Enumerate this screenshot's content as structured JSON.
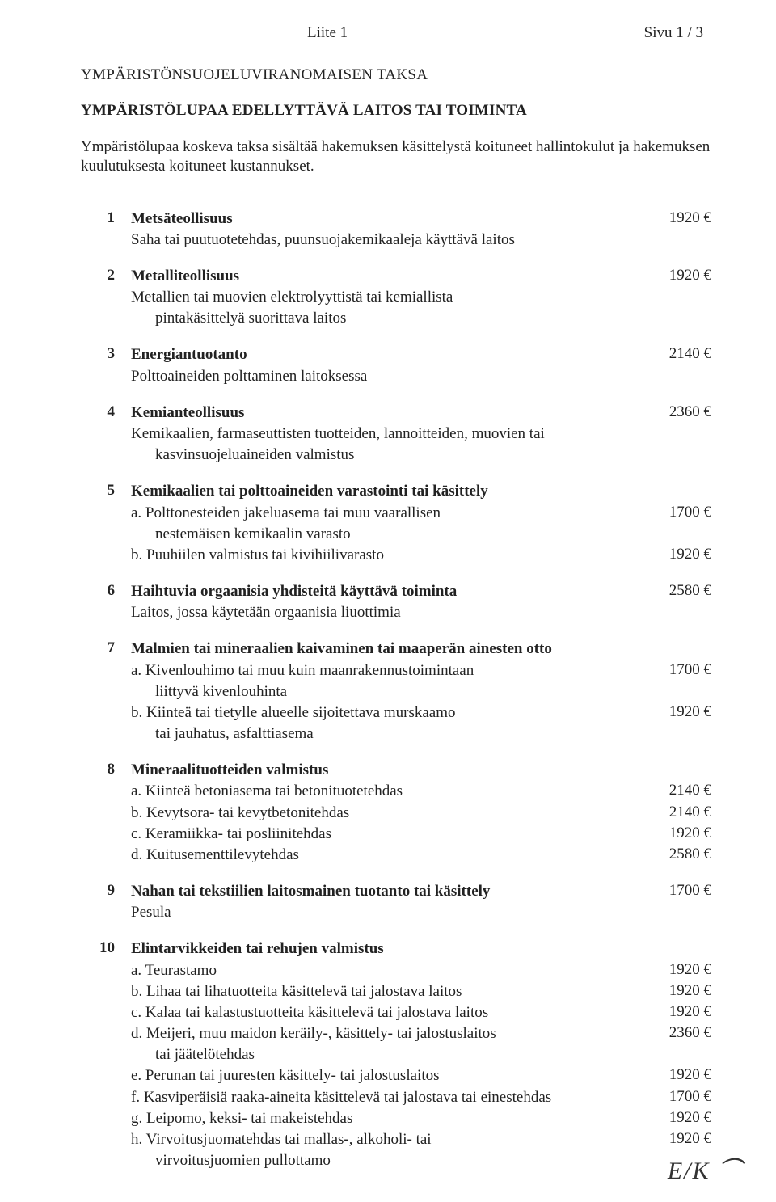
{
  "header": {
    "liite": "Liite 1",
    "page": "Sivu 1 / 3"
  },
  "title": "YMPÄRISTÖNSUOJELUVIRANOMAISEN TAKSA",
  "subtitle": "YMPÄRISTÖLUPAA EDELLYTTÄVÄ LAITOS TAI TOIMINTA",
  "intro": "Ympäristölupaa koskeva taksa sisältää hakemuksen käsittelystä koituneet hallintokulut ja hakemuksen kuulutuksesta koituneet kustannukset.",
  "items": {
    "n1": "1",
    "t1_head": "Metsäteollisuus",
    "t1_desc": "Saha tai puutuotetehdas, puunsuojakemikaaleja käyttävä laitos",
    "p1": "1920 €",
    "n2": "2",
    "t2_head": "Metalliteollisuus",
    "t2_desc": "Metallien tai muovien elektrolyyttistä tai kemiallista",
    "t2_desc2": "pintakäsittelyä suorittava laitos",
    "p2": "1920 €",
    "n3": "3",
    "t3_head": "Energiantuotanto",
    "t3_desc": "Polttoaineiden polttaminen laitoksessa",
    "p3": "2140 €",
    "n4": "4",
    "t4_head": "Kemianteollisuus",
    "t4_desc": "Kemikaalien, farmaseuttisten tuotteiden, lannoitteiden, muovien tai",
    "t4_desc2": "kasvinsuojeluaineiden valmistus",
    "p4": "2360 €",
    "n5": "5",
    "t5_head": "Kemikaalien tai polttoaineiden varastointi tai käsittely",
    "t5a": "a. Polttonesteiden jakeluasema tai muu vaarallisen",
    "t5a2": "nestemäisen kemikaalin varasto",
    "p5a": "1700 €",
    "t5b": "b. Puuhiilen valmistus tai kivihiilivarasto",
    "p5b": "1920 €",
    "n6": "6",
    "t6_head": "Haihtuvia orgaanisia yhdisteitä käyttävä toiminta",
    "t6_desc": "Laitos, jossa käytetään orgaanisia liuottimia",
    "p6": "2580 €",
    "n7": "7",
    "t7_head": "Malmien tai mineraalien kaivaminen tai maaperän ainesten otto",
    "t7a": "a. Kivenlouhimo tai muu kuin maanrakennustoimintaan",
    "t7a2": "liittyvä kivenlouhinta",
    "p7a": "1700 €",
    "t7b": "b. Kiinteä tai tietylle alueelle sijoitettava murskaamo",
    "t7b2": "tai jauhatus, asfalttiasema",
    "p7b": "1920 €",
    "n8": "8",
    "t8_head": "Mineraalituotteiden valmistus",
    "t8a": "a. Kiinteä betoniasema tai betonituotetehdas",
    "p8a": "2140 €",
    "t8b": "b. Kevytsora- tai kevytbetonitehdas",
    "p8b": "2140 €",
    "t8c": "c. Keramiikka- tai posliinitehdas",
    "p8c": "1920 €",
    "t8d": "d. Kuitusementtilevytehdas",
    "p8d": "2580 €",
    "n9": "9",
    "t9_head": "Nahan tai tekstiilien laitosmainen tuotanto tai käsittely",
    "t9_desc": "Pesula",
    "p9": "1700 €",
    "n10": "10",
    "t10_head": "Elintarvikkeiden tai rehujen valmistus",
    "t10a": "a. Teurastamo",
    "p10a": "1920 €",
    "t10b": "b. Lihaa tai lihatuotteita käsittelevä tai jalostava laitos",
    "p10b": "1920 €",
    "t10c": "c. Kalaa tai kalastustuotteita käsittelevä tai jalostava laitos",
    "p10c": "1920 €",
    "t10d": "d. Meijeri, muu maidon keräily-, käsittely- tai jalostuslaitos",
    "t10d2": "tai jäätelötehdas",
    "p10d": "2360 €",
    "t10e": "e. Perunan tai juuresten käsittely- tai jalostuslaitos",
    "p10e": "1920 €",
    "t10f": "f. Kasviperäisiä raaka-aineita käsittelevä tai jalostava tai einestehdas",
    "p10f": "1700 €",
    "t10g": "g. Leipomo, keksi- tai makeistehdas",
    "p10g": "1920 €",
    "t10h": "h. Virvoitusjuomatehdas tai mallas-, alkoholi- tai",
    "t10h2": "virvoitusjuomien pullottamo",
    "p10h": "1920 €"
  },
  "scribble": "E/K  ⌒"
}
